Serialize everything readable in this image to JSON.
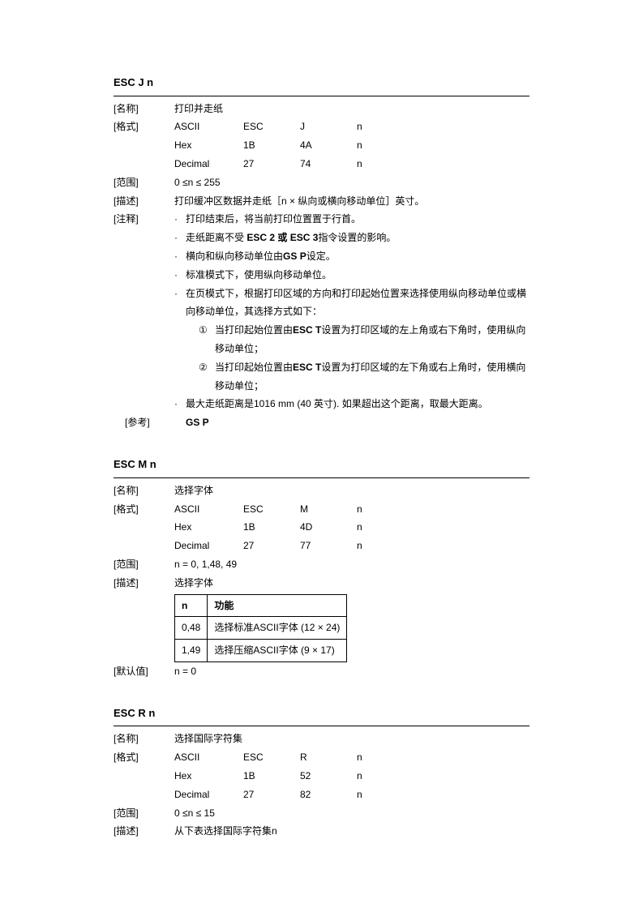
{
  "cmd1": {
    "title": "ESC J n",
    "name_label": "[名称]",
    "name_val": "打印并走纸",
    "format_label": "[格式]",
    "fmt": {
      "r1": [
        "ASCII",
        "ESC",
        "J",
        "n"
      ],
      "r2": [
        "Hex",
        "1B",
        "4A",
        "n"
      ],
      "r3": [
        "Decimal",
        "27",
        "74",
        "n"
      ]
    },
    "range_label": "[范围]",
    "range_val": "0 ≤n ≤ 255",
    "desc_label": "[描述]",
    "desc_val": "打印缓冲区数据并走纸［n ×  纵向或横向移动单位］英寸。",
    "note_label": "[注释]",
    "notes": {
      "n1": "打印结束后，将当前打印位置置于行首。",
      "n2a": "走纸距离不受 ",
      "n2b": "ESC 2  或  ESC 3",
      "n2c": "指令设置的影响。",
      "n3a": "横向和纵向移动单位由",
      "n3b": "GS P",
      "n3c": "设定。",
      "n4": "标准模式下，使用纵向移动单位。",
      "n5": "在页模式下，根据打印区域的方向和打印起始位置来选择使用纵向移动单位或横向移动单位，其选择方式如下：",
      "s1_num": "①",
      "s1a": "当打印起始位置由",
      "s1b": "ESC T",
      "s1c": "设置为打印区域的左上角或右下角时，使用纵向移动单位；",
      "s2_num": "②",
      "s2a": "当打印起始位置由",
      "s2b": "ESC T",
      "s2c": "设置为打印区域的左下角或右上角时，使用横向移动单位；",
      "n6": "最大走纸距离是1016 mm (40  英寸). 如果超出这个距离，取最大距离。"
    },
    "ref_label": "[参考]",
    "ref_val": "GS P"
  },
  "cmd2": {
    "title": "ESC M n",
    "name_label": "[名称]",
    "name_val": "选择字体",
    "format_label": "[格式]",
    "fmt": {
      "r1": [
        "ASCII",
        "ESC",
        "M",
        "n"
      ],
      "r2": [
        "Hex",
        "1B",
        "4D",
        "n"
      ],
      "r3": [
        "Decimal",
        "27",
        "77",
        "n"
      ]
    },
    "range_label": "[范围]",
    "range_val": "n = 0, 1,48, 49",
    "desc_label": "[描述]",
    "desc_val": "选择字体",
    "table": {
      "h1": "n",
      "h2": "功能",
      "r1c1": "0,48",
      "r1c2": "选择标准ASCII字体 (12 × 24)",
      "r2c1": "1,49",
      "r2c2": "选择压缩ASCII字体 (9 × 17)"
    },
    "default_label": "[默认值]",
    "default_val": "n = 0"
  },
  "cmd3": {
    "title": "ESC R n",
    "name_label": "[名称]",
    "name_val": "选择国际字符集",
    "format_label": "[格式]",
    "fmt": {
      "r1": [
        "ASCII",
        "ESC",
        "R",
        "n"
      ],
      "r2": [
        "Hex",
        "1B",
        "52",
        "n"
      ],
      "r3": [
        "Decimal",
        "27",
        "82",
        "n"
      ]
    },
    "range_label": "[范围]",
    "range_val": "0 ≤n ≤ 15",
    "desc_label": "[描述]",
    "desc_val": "从下表选择国际字符集n"
  }
}
